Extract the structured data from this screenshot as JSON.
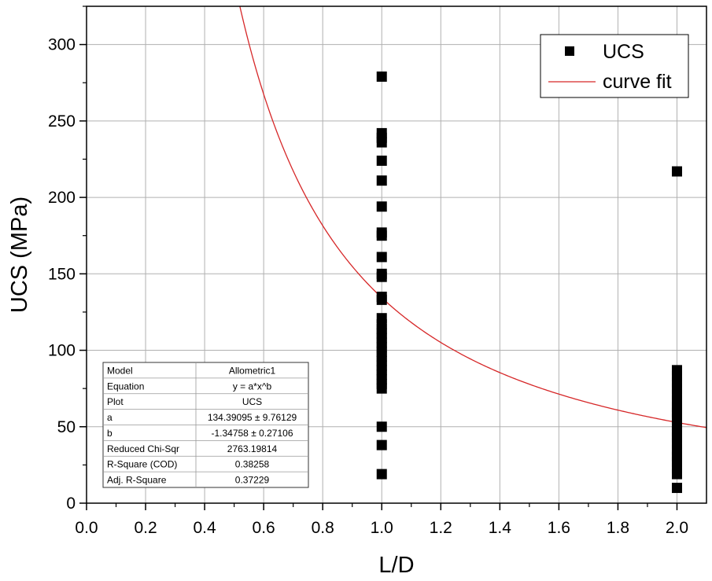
{
  "chart_data": {
    "type": "scatter",
    "xlabel": "L/D",
    "ylabel": "UCS (MPa)",
    "xlim": [
      0.0,
      2.1
    ],
    "ylim": [
      0,
      325
    ],
    "x_ticks": [
      "0.0",
      "0.2",
      "0.4",
      "0.6",
      "0.8",
      "1.0",
      "1.2",
      "1.4",
      "1.6",
      "1.8",
      "2.0"
    ],
    "y_ticks": [
      "0",
      "50",
      "100",
      "150",
      "200",
      "250",
      "300"
    ],
    "grid": true,
    "legend_position": "top-right",
    "colors": {
      "points": "#000000",
      "fit": "#d62728",
      "grid": "#b0b0b0"
    },
    "series": [
      {
        "name": "UCS",
        "kind": "points",
        "x": [
          1,
          1,
          1,
          1,
          1,
          1,
          1,
          1,
          1,
          1,
          1,
          1,
          1,
          1,
          1,
          1,
          1,
          1,
          1,
          1,
          1,
          1,
          1,
          1,
          1,
          1,
          1,
          1,
          1,
          1,
          1,
          1,
          1,
          2,
          2,
          2,
          2,
          2,
          2,
          2,
          2,
          2,
          2,
          2,
          2,
          2,
          2,
          2,
          2,
          2,
          2,
          2,
          2,
          2,
          2,
          2
        ],
        "y": [
          279,
          242,
          239,
          236,
          224,
          211,
          194,
          177,
          161,
          150,
          135,
          121,
          117,
          114,
          111,
          108,
          105,
          102,
          99,
          96,
          93,
          90,
          87,
          84,
          81,
          78,
          75,
          50,
          38,
          19,
          175,
          148,
          133,
          217,
          87,
          83,
          79,
          75,
          71,
          67,
          63,
          59,
          55,
          51,
          47,
          43,
          39,
          35,
          31,
          27,
          23,
          19,
          10,
          60,
          45,
          30
        ]
      },
      {
        "name": "curve fit",
        "kind": "fit",
        "model": "allometric",
        "a": 134.39095,
        "b": -1.34758
      }
    ]
  },
  "fit_table": {
    "rows": [
      {
        "label": "Model",
        "value": "Allometric1"
      },
      {
        "label": "Equation",
        "value": "y = a*x^b"
      },
      {
        "label": "Plot",
        "value": "UCS"
      },
      {
        "label": "a",
        "value": "134.39095 ± 9.76129"
      },
      {
        "label": "b",
        "value": "-1.34758 ± 0.27106"
      },
      {
        "label": "Reduced Chi-Sqr",
        "value": "2763.19814"
      },
      {
        "label": "R-Square (COD)",
        "value": "0.38258"
      },
      {
        "label": "Adj. R-Square",
        "value": "0.37229"
      }
    ]
  }
}
